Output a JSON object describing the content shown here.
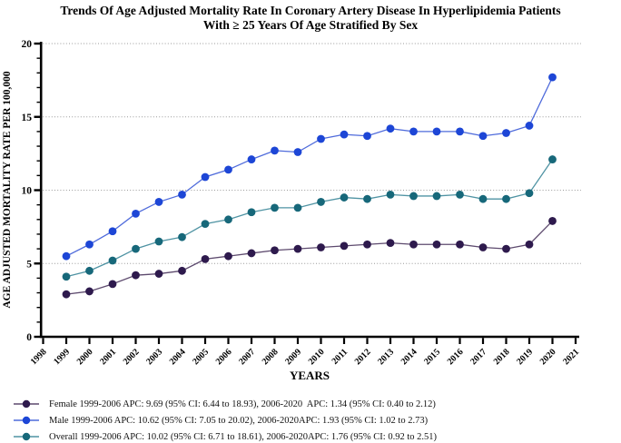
{
  "title": {
    "line1": "Trends Of Age Adjusted Mortality Rate In Coronary Artery Disease In Hyperlipidemia Patients",
    "line2": "With ≥ 25 Years Of Age Stratified By Sex"
  },
  "chart_data": {
    "type": "line",
    "title": "Trends Of Age Adjusted Mortality Rate In Coronary Artery Disease In Hyperlipidemia Patients With ≥ 25 Years Of Age Stratified By Sex",
    "xlabel": "YEARS",
    "ylabel": "AGE ADJUSTED MORTALITY RATE PER 100,000",
    "ylim": [
      0,
      20
    ],
    "yticks": [
      0,
      5,
      10,
      15,
      20
    ],
    "y_minor_tick_step": 1,
    "xticks": [
      1998,
      1999,
      2000,
      2001,
      2002,
      2003,
      2004,
      2005,
      2006,
      2007,
      2008,
      2009,
      2010,
      2011,
      2012,
      2013,
      2014,
      2015,
      2016,
      2017,
      2018,
      2019,
      2020,
      2021
    ],
    "grid": "horizontal-dotted",
    "grid_color": "#999999",
    "axis_color": "#000000",
    "legend_position": "bottom-left",
    "x": [
      1999,
      2000,
      2001,
      2002,
      2003,
      2004,
      2005,
      2006,
      2007,
      2008,
      2009,
      2010,
      2011,
      2012,
      2013,
      2014,
      2015,
      2016,
      2017,
      2018,
      2019,
      2020
    ],
    "series": [
      {
        "name": "Female",
        "marker_color": "#2e1a4d",
        "line_color": "#5d4a6e",
        "values": [
          2.9,
          3.1,
          3.6,
          4.2,
          4.3,
          4.5,
          5.3,
          5.5,
          5.7,
          5.9,
          6.0,
          6.1,
          6.2,
          6.3,
          6.4,
          6.3,
          6.3,
          6.3,
          6.1,
          6.0,
          6.3,
          7.9
        ],
        "legend_label": "Female 1999-2006 APC: 9.69 (95% CI: 6.44 to 18.93), 2006-2020  APC: 1.34 (95% CI: 0.40 to 2.12)"
      },
      {
        "name": "Male",
        "marker_color": "#1d46d6",
        "line_color": "#4f6bdb",
        "values": [
          5.5,
          6.3,
          7.2,
          8.4,
          9.2,
          9.7,
          10.9,
          11.4,
          12.1,
          12.7,
          12.6,
          13.5,
          13.8,
          13.7,
          14.2,
          14.0,
          14.0,
          14.0,
          13.7,
          13.9,
          14.4,
          17.7
        ],
        "legend_label": "Male 1999-2006 APC: 10.62 (95% CI: 7.05 to 20.02), 2006-2020APC: 1.93 (95% CI: 1.02 to 2.73)"
      },
      {
        "name": "Overall",
        "marker_color": "#17687a",
        "line_color": "#4f93a3",
        "values": [
          4.1,
          4.5,
          5.2,
          6.0,
          6.5,
          6.8,
          7.7,
          8.0,
          8.5,
          8.8,
          8.8,
          9.2,
          9.5,
          9.4,
          9.7,
          9.6,
          9.6,
          9.7,
          9.4,
          9.4,
          9.8,
          12.1
        ],
        "legend_label": "Overall 1999-2006 APC: 10.02 (95% CI: 6.71 to 18.61), 2006-2020APC: 1.76 (95% CI: 0.92 to 2.51)"
      }
    ]
  }
}
